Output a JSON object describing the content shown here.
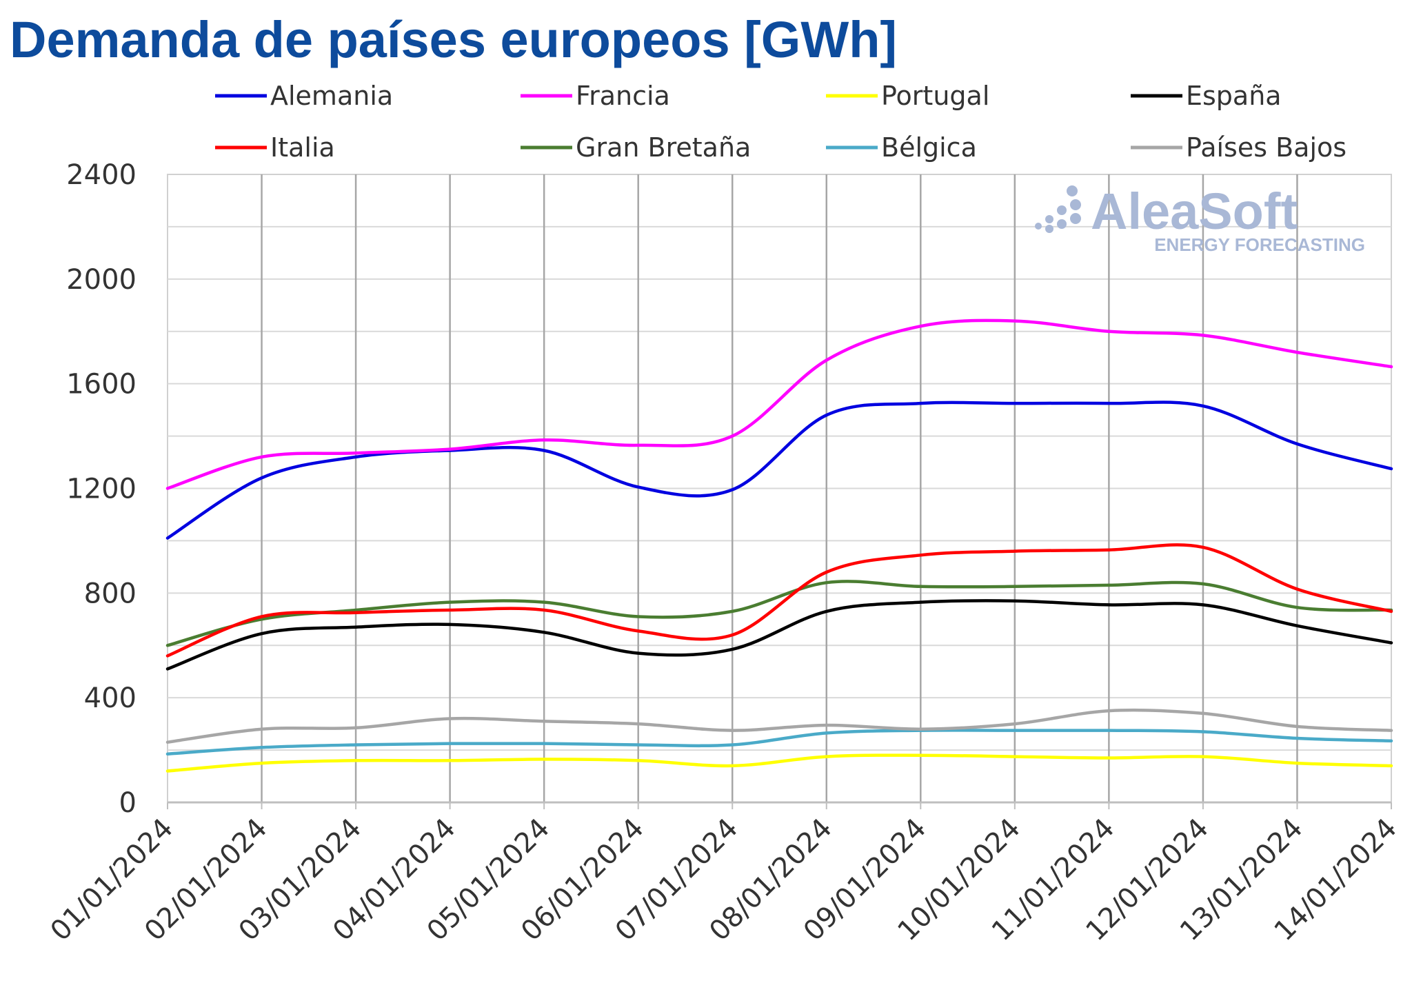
{
  "title": "Demanda de países europeos [GWh]",
  "watermark": {
    "brand": "AleaSoft",
    "tagline": "ENERGY FORECASTING"
  },
  "chart_data": {
    "type": "line",
    "title": "Demanda de países europeos [GWh]",
    "xlabel": "",
    "ylabel": "",
    "ylim": [
      0,
      2400
    ],
    "yticks": [
      0,
      400,
      800,
      1200,
      1600,
      2000,
      2400
    ],
    "grid": true,
    "legend_position": "top",
    "categories": [
      "01/01/2024",
      "02/01/2024",
      "03/01/2024",
      "04/01/2024",
      "05/01/2024",
      "06/01/2024",
      "07/01/2024",
      "08/01/2024",
      "09/01/2024",
      "10/01/2024",
      "11/01/2024",
      "12/01/2024",
      "13/01/2024",
      "14/01/2024"
    ],
    "series": [
      {
        "name": "Alemania",
        "color": "#0000e0",
        "values": [
          1010,
          1240,
          1320,
          1345,
          1345,
          1205,
          1195,
          1480,
          1525,
          1525,
          1525,
          1515,
          1370,
          1275
        ]
      },
      {
        "name": "Francia",
        "color": "#ff00ff",
        "values": [
          1200,
          1320,
          1335,
          1350,
          1385,
          1365,
          1400,
          1690,
          1820,
          1840,
          1800,
          1785,
          1720,
          1665
        ]
      },
      {
        "name": "Portugal",
        "color": "#ffff00",
        "values": [
          120,
          150,
          160,
          160,
          165,
          160,
          140,
          175,
          180,
          175,
          170,
          175,
          150,
          140
        ]
      },
      {
        "name": "España",
        "color": "#000000",
        "values": [
          510,
          645,
          670,
          680,
          650,
          570,
          585,
          730,
          765,
          770,
          755,
          755,
          675,
          610
        ]
      },
      {
        "name": "Italia",
        "color": "#ff0000",
        "values": [
          560,
          710,
          725,
          735,
          735,
          655,
          640,
          880,
          945,
          960,
          965,
          975,
          815,
          730
        ]
      },
      {
        "name": "Gran Bretaña",
        "color": "#4a7d31",
        "values": [
          600,
          700,
          735,
          765,
          765,
          710,
          730,
          840,
          825,
          825,
          830,
          835,
          745,
          735
        ]
      },
      {
        "name": "Bélgica",
        "color": "#4aaac8",
        "values": [
          185,
          210,
          220,
          225,
          225,
          220,
          220,
          265,
          275,
          275,
          275,
          270,
          245,
          235
        ]
      },
      {
        "name": "Países Bajos",
        "color": "#a6a6a6",
        "values": [
          230,
          280,
          285,
          320,
          310,
          300,
          275,
          295,
          280,
          300,
          350,
          340,
          290,
          275
        ]
      }
    ]
  }
}
